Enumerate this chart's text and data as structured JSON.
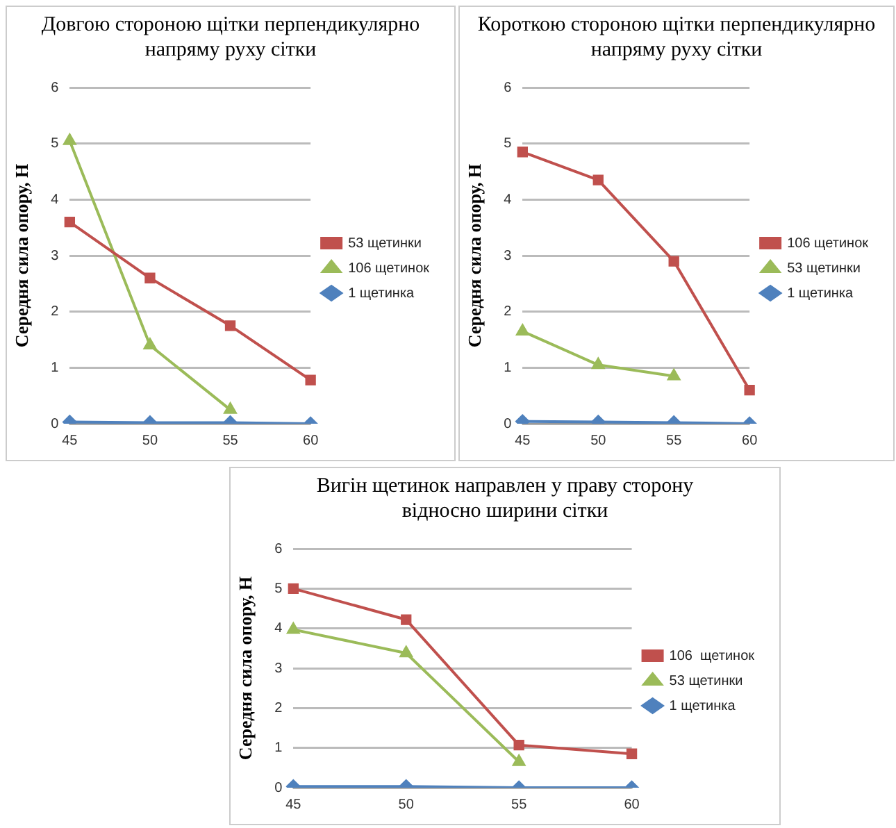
{
  "chart_data": [
    {
      "type": "line",
      "title": "Довгою стороною щітки перпендикулярно напряму руху сітки",
      "ylabel": "Середня сила опору, Н",
      "categories": [
        "45",
        "50",
        "55",
        "60"
      ],
      "ylim": [
        0,
        6
      ],
      "yticks": [
        0,
        1,
        2,
        3,
        4,
        5,
        6
      ],
      "grid": "y",
      "legend": "right",
      "line_style": "solid",
      "series": [
        {
          "name": "53 щетинки",
          "color": "#c0504d",
          "marker": "square",
          "values": [
            3.6,
            2.6,
            1.75,
            0.78
          ]
        },
        {
          "name": "106 щетинок",
          "color": "#9bbb59",
          "marker": "triangle",
          "values": [
            5.05,
            1.4,
            0.25,
            null
          ]
        },
        {
          "name": "1 щетинка",
          "color": "#4f81bd",
          "marker": "diamond",
          "values": [
            0.03,
            0.02,
            0.02,
            0
          ]
        }
      ]
    },
    {
      "type": "line",
      "title": "Короткою стороною щітки перпендикулярно напряму руху сітки",
      "ylabel": "Середня сила опору, Н",
      "categories": [
        "45",
        "50",
        "55",
        "60"
      ],
      "ylim": [
        0,
        6
      ],
      "yticks": [
        0,
        1,
        2,
        3,
        4,
        5,
        6
      ],
      "grid": "y",
      "legend": "right",
      "line_style": "solid",
      "series": [
        {
          "name": "106 щетинок",
          "color": "#c0504d",
          "marker": "square",
          "values": [
            4.85,
            4.35,
            2.9,
            0.6
          ]
        },
        {
          "name": "53 щетинки",
          "color": "#9bbb59",
          "marker": "triangle",
          "values": [
            1.65,
            1.05,
            0.85,
            null
          ]
        },
        {
          "name": "1 щетинка",
          "color": "#4f81bd",
          "marker": "diamond",
          "values": [
            0.04,
            0.03,
            0.02,
            0
          ]
        }
      ]
    },
    {
      "type": "line",
      "title": "Вигін щетинок направлен у праву сторону відносно ширини сітки",
      "ylabel": "Середня сила опору, Н",
      "categories": [
        "45",
        "50",
        "55",
        "60"
      ],
      "ylim": [
        0,
        6
      ],
      "yticks": [
        0,
        1,
        2,
        3,
        4,
        5,
        6
      ],
      "grid": "y",
      "legend": "right",
      "line_style": "solid",
      "series": [
        {
          "name": "106  щетинок",
          "color": "#c0504d",
          "marker": "square",
          "values": [
            5.0,
            4.22,
            1.07,
            0.85
          ]
        },
        {
          "name": "53 щетинки",
          "color": "#9bbb59",
          "marker": "triangle",
          "values": [
            3.97,
            3.38,
            0.65,
            null
          ]
        },
        {
          "name": "1 щетинка",
          "color": "#4f81bd",
          "marker": "diamond",
          "values": [
            0.03,
            0.03,
            0,
            0
          ]
        }
      ]
    }
  ]
}
